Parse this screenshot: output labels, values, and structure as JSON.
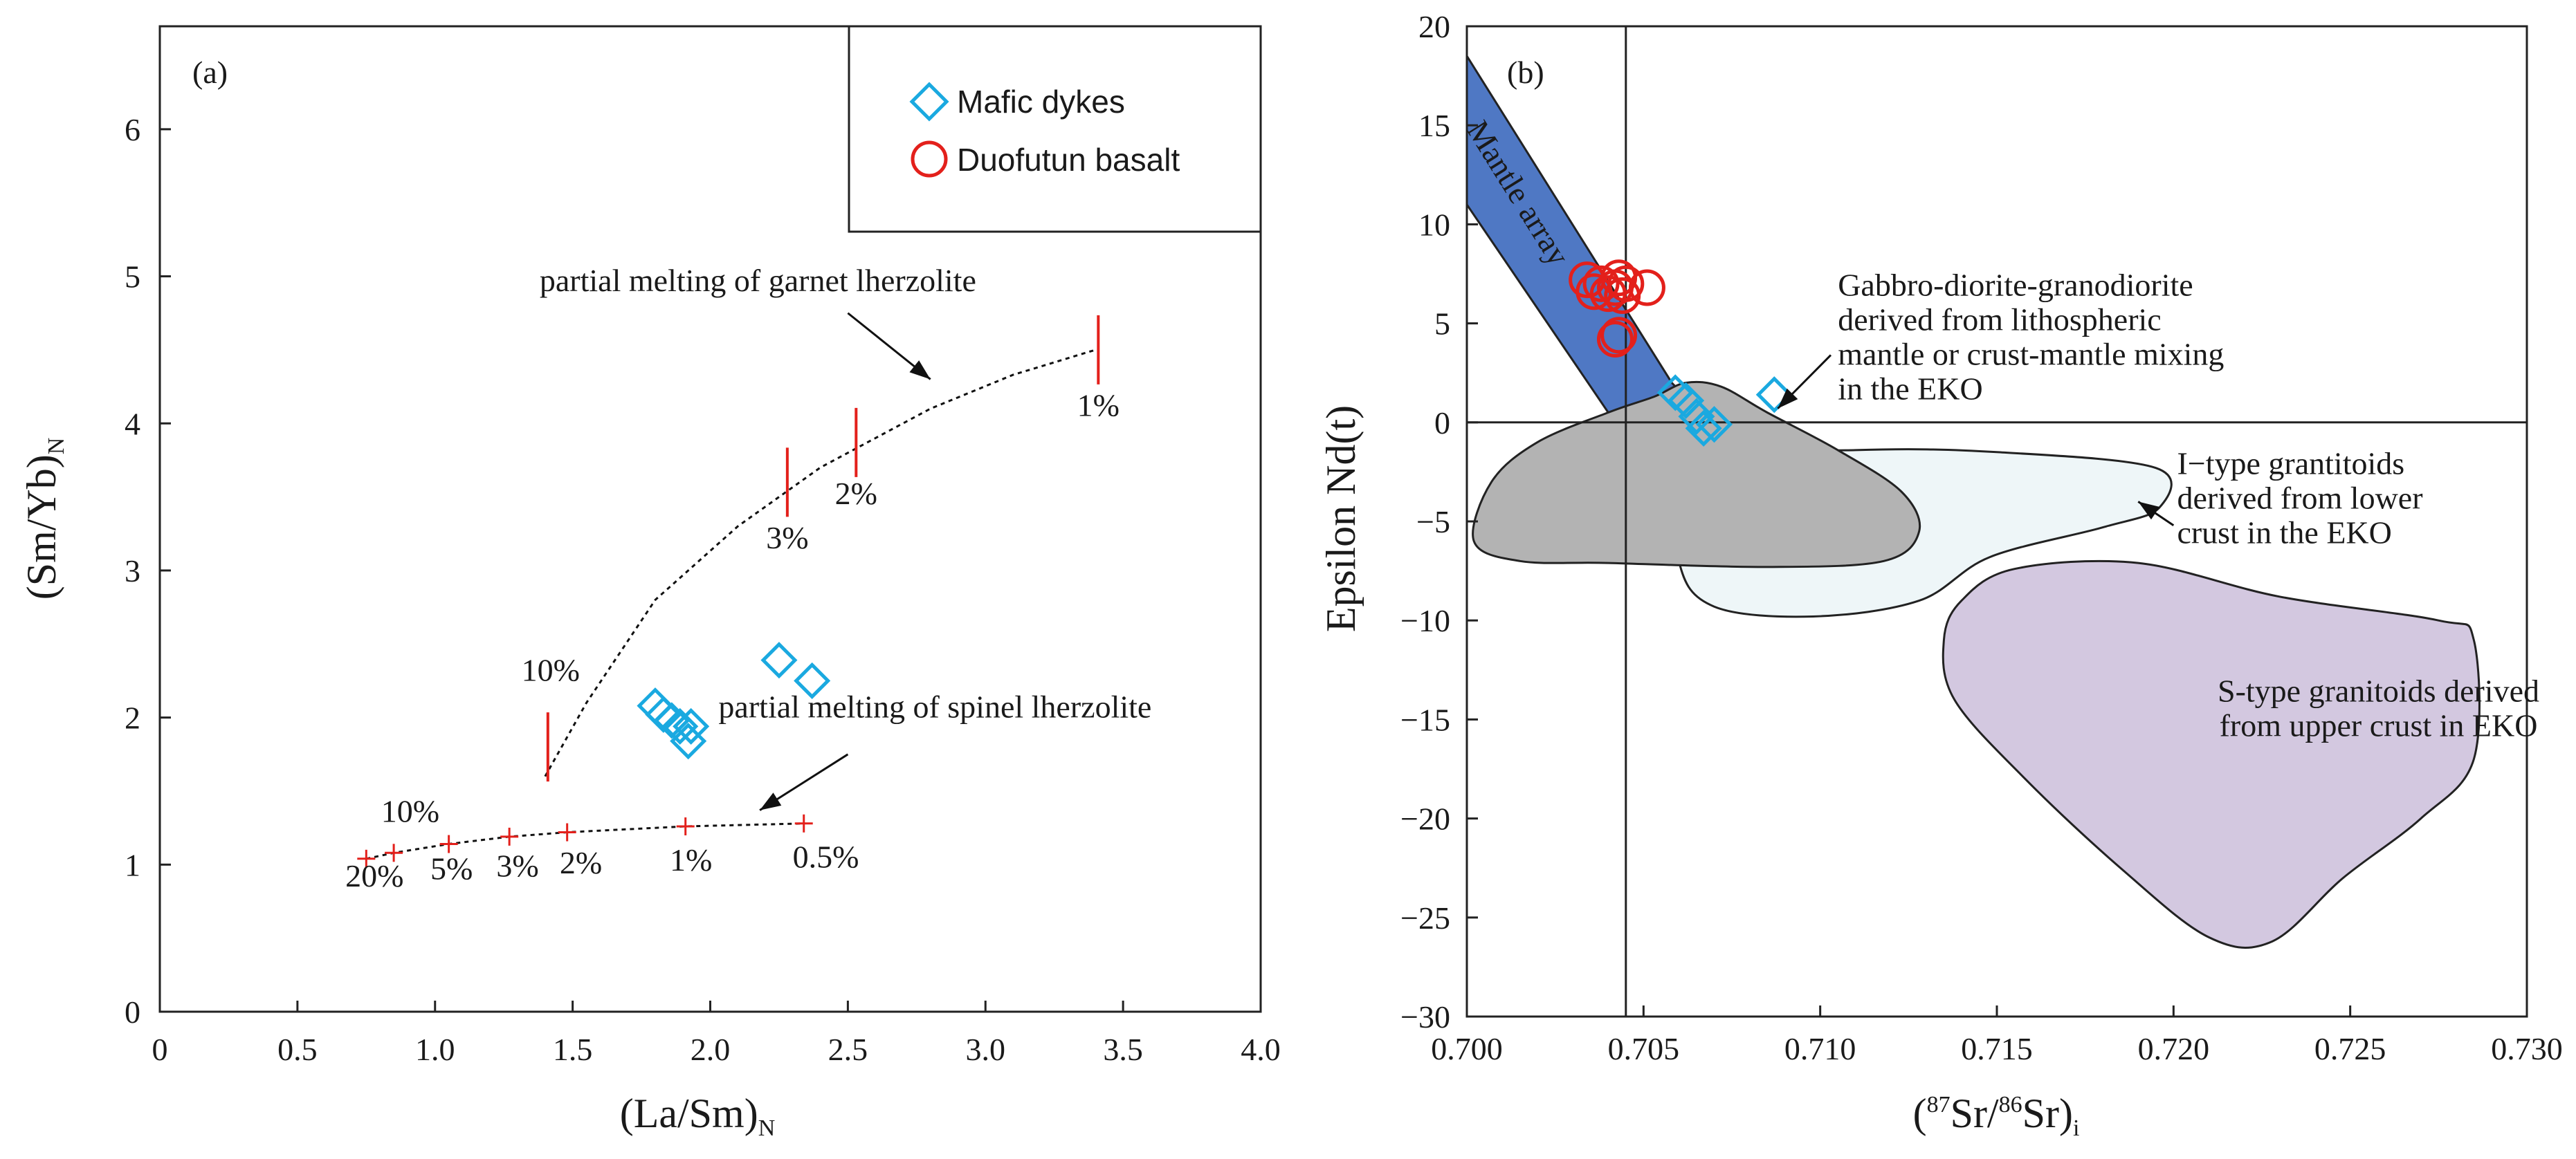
{
  "colors": {
    "mafic": "#1aa9e0",
    "basalt": "#e3201b",
    "red_mark": "#e3201b",
    "mantle_array": "#4f78c4",
    "gabbro_field": "#b3b3b3",
    "itype_field": "#eef6f8",
    "stype_field": "#d3c8e0"
  },
  "legend": {
    "mafic": "Mafic dykes",
    "basalt": "Duofutun basalt"
  },
  "chart_data": [
    {
      "type": "scatter",
      "panel_label": "(a)",
      "xlabel": "(La/Sm)",
      "xlabel_sub": "N",
      "ylabel": "(Sm/Yb)",
      "ylabel_sub": "N",
      "xlim": [
        0,
        4.0
      ],
      "ylim": [
        0,
        6.7
      ],
      "x_ticks": [
        0,
        0.5,
        1.0,
        1.5,
        2.0,
        2.5,
        3.0,
        3.5,
        4.0
      ],
      "x_tick_labels": [
        "0",
        "0.5",
        "1.0",
        "1.5",
        "2.0",
        "2.5",
        "3.0",
        "3.5",
        "4.0"
      ],
      "y_ticks": [
        0,
        1,
        2,
        3,
        4,
        5,
        6
      ],
      "y_tick_labels": [
        "0",
        "1",
        "2",
        "3",
        "4",
        "5",
        "6"
      ],
      "series": [
        {
          "name": "Mafic dykes",
          "marker": "diamond",
          "points": [
            [
              1.8,
              2.08
            ],
            [
              1.83,
              2.02
            ],
            [
              1.86,
              1.98
            ],
            [
              1.89,
              1.94
            ],
            [
              1.93,
              1.94
            ],
            [
              1.92,
              1.84
            ],
            [
              2.25,
              2.39
            ],
            [
              2.37,
              2.25
            ]
          ]
        }
      ],
      "curves": [
        {
          "name": "partial melting of garnet lherzolite",
          "points": [
            [
              1.4,
              1.6
            ],
            [
              1.55,
              2.1
            ],
            [
              1.8,
              2.8
            ],
            [
              2.1,
              3.3
            ],
            [
              2.4,
              3.7
            ],
            [
              2.8,
              4.1
            ],
            [
              3.1,
              4.33
            ],
            [
              3.4,
              4.5
            ]
          ],
          "ticks": [
            {
              "x": 1.41,
              "y": 1.8,
              "label": "10%",
              "label_xy": [
                1.42,
                2.25
              ]
            },
            {
              "x": 2.28,
              "y": 3.6,
              "label": "3%",
              "label_xy": [
                2.28,
                3.15
              ]
            },
            {
              "x": 2.53,
              "y": 3.87,
              "label": "2%",
              "label_xy": [
                2.53,
                3.45
              ]
            },
            {
              "x": 3.41,
              "y": 4.5,
              "label": "1%",
              "label_xy": [
                3.41,
                4.05
              ]
            }
          ]
        },
        {
          "name": "partial melting of spinel lherzolite",
          "points": [
            [
              0.75,
              1.04
            ],
            [
              0.85,
              1.08
            ],
            [
              1.05,
              1.14
            ],
            [
              1.27,
              1.19
            ],
            [
              1.48,
              1.22
            ],
            [
              1.91,
              1.26
            ],
            [
              2.34,
              1.28
            ]
          ],
          "ticks": [
            {
              "x": 0.75,
              "y": 1.04,
              "label": "20%",
              "label_xy": [
                0.78,
                0.85
              ]
            },
            {
              "x": 0.85,
              "y": 1.08,
              "label": "10%",
              "label_xy": [
                0.91,
                1.29
              ]
            },
            {
              "x": 1.05,
              "y": 1.14,
              "label": "5%",
              "label_xy": [
                1.06,
                0.9
              ]
            },
            {
              "x": 1.27,
              "y": 1.19,
              "label": "3%",
              "label_xy": [
                1.3,
                0.92
              ]
            },
            {
              "x": 1.48,
              "y": 1.22,
              "label": "2%",
              "label_xy": [
                1.53,
                0.94
              ]
            },
            {
              "x": 1.91,
              "y": 1.26,
              "label": "1%",
              "label_xy": [
                1.93,
                0.96
              ]
            },
            {
              "x": 2.34,
              "y": 1.28,
              "label": "0.5%",
              "label_xy": [
                2.42,
                0.98
              ]
            }
          ]
        }
      ],
      "annotations": [
        {
          "text": "partial melting of garnet lherzolite",
          "xy": [
            1.38,
            4.9
          ],
          "arrow_from": [
            2.5,
            4.75
          ],
          "arrow_to": [
            2.8,
            4.3
          ]
        },
        {
          "text": "partial melting of spinel lherzolite",
          "xy": [
            2.03,
            2.0
          ],
          "arrow_from": [
            2.5,
            1.75
          ],
          "arrow_to": [
            2.18,
            1.37
          ]
        }
      ]
    },
    {
      "type": "scatter",
      "panel_label": "(b)",
      "xlabel": "(87Sr/86Sr)i",
      "ylabel": "Epsilon Nd(t)",
      "xlim": [
        0.7,
        0.73
      ],
      "ylim": [
        -30,
        20
      ],
      "x_ticks": [
        0.7,
        0.705,
        0.71,
        0.715,
        0.72,
        0.725,
        0.73
      ],
      "x_tick_labels": [
        "0.700",
        "0.705",
        "0.710",
        "0.715",
        "0.720",
        "0.725",
        "0.730"
      ],
      "y_ticks": [
        20,
        15,
        10,
        5,
        0,
        -5,
        -10,
        -15,
        -20,
        -25,
        -30
      ],
      "y_tick_labels": [
        "20",
        "15",
        "10",
        "5",
        "0",
        "−5",
        "−10",
        "−15",
        "−20",
        "−25",
        "−30"
      ],
      "reference_lines": {
        "x": 0.7045,
        "y": 0
      },
      "series": [
        {
          "name": "Mafic dykes",
          "marker": "diamond",
          "points": [
            [
              0.7059,
              1.5
            ],
            [
              0.7062,
              1.1
            ],
            [
              0.7065,
              0.3
            ],
            [
              0.7067,
              -0.3
            ],
            [
              0.707,
              -0.1
            ],
            [
              0.7087,
              1.4
            ]
          ]
        },
        {
          "name": "Duofutun basalt",
          "marker": "circle",
          "points": [
            [
              0.7034,
              7.2
            ],
            [
              0.7036,
              6.6
            ],
            [
              0.7038,
              7.0
            ],
            [
              0.704,
              6.5
            ],
            [
              0.7042,
              6.8
            ],
            [
              0.7043,
              7.3
            ],
            [
              0.7044,
              6.4
            ],
            [
              0.7045,
              7.0
            ],
            [
              0.7051,
              6.8
            ],
            [
              0.7043,
              4.4
            ],
            [
              0.7042,
              4.2
            ]
          ]
        }
      ],
      "fields": [
        {
          "name": "Mantle array",
          "polygon": [
            [
              0.7,
              18.5
            ],
            [
              0.7,
              11.0
            ],
            [
              0.704,
              0.5
            ],
            [
              0.7066,
              0.5
            ],
            [
              0.7058,
              2.0
            ]
          ]
        },
        {
          "name": "I-type grantitoids",
          "polygon": [
            [
              0.706,
              -2.0
            ],
            [
              0.711,
              -1.4
            ],
            [
              0.715,
              -1.5
            ],
            [
              0.7195,
              -2.3
            ],
            [
              0.7196,
              -4.3
            ],
            [
              0.718,
              -5.3
            ],
            [
              0.7148,
              -6.8
            ],
            [
              0.7128,
              -9.0
            ],
            [
              0.7098,
              -9.8
            ],
            [
              0.707,
              -9.3
            ],
            [
              0.706,
              -7.0
            ]
          ]
        },
        {
          "name": "Gabbro-diorite-granodiorite",
          "polygon": [
            [
              0.7002,
              -6.0
            ],
            [
              0.7007,
              -3.0
            ],
            [
              0.702,
              -1.0
            ],
            [
              0.704,
              0.5
            ],
            [
              0.7053,
              1.3
            ],
            [
              0.7062,
              2.0
            ],
            [
              0.7072,
              1.8
            ],
            [
              0.7085,
              0.5
            ],
            [
              0.7105,
              -1.4
            ],
            [
              0.7123,
              -3.5
            ],
            [
              0.7128,
              -5.5
            ],
            [
              0.7118,
              -7.0
            ],
            [
              0.7085,
              -7.3
            ],
            [
              0.704,
              -7.1
            ],
            [
              0.7015,
              -7.0
            ]
          ]
        },
        {
          "name": "S-type granitoids",
          "polygon": [
            [
              0.7135,
              -11.0
            ],
            [
              0.714,
              -9.0
            ],
            [
              0.7155,
              -7.4
            ],
            [
              0.719,
              -7.1
            ],
            [
              0.723,
              -8.8
            ],
            [
              0.7275,
              -10.0
            ],
            [
              0.7285,
              -11.0
            ],
            [
              0.7285,
              -17.0
            ],
            [
              0.727,
              -20.0
            ],
            [
              0.7248,
              -23.0
            ],
            [
              0.7228,
              -26.2
            ],
            [
              0.721,
              -26.0
            ],
            [
              0.7185,
              -22.5
            ],
            [
              0.7158,
              -18.0
            ],
            [
              0.7138,
              -14.0
            ]
          ]
        }
      ],
      "annotations": [
        {
          "text": "Mantle array",
          "xy": [
            0.7012,
            11.3
          ]
        },
        {
          "lines": [
            "Gabbro-diorite-granodiorite",
            "derived from lithospheric",
            "mantle or crust-mantle mixing",
            "in the EKO"
          ],
          "xy": [
            0.7105,
            6.4
          ],
          "arrow_from": [
            0.7103,
            3.4
          ],
          "arrow_to": [
            0.7088,
            0.7
          ]
        },
        {
          "lines": [
            "I−type grantitoids",
            "derived from lower",
            "crust in the EKO"
          ],
          "xy": [
            0.7201,
            -2.6
          ],
          "arrow_from": [
            0.72,
            -5.2
          ],
          "arrow_to": [
            0.719,
            -4.0
          ]
        },
        {
          "lines": [
            "S-type granitoids derived",
            "from upper crust in EKO"
          ],
          "xy": [
            0.7258,
            -14.1
          ]
        }
      ]
    }
  ]
}
